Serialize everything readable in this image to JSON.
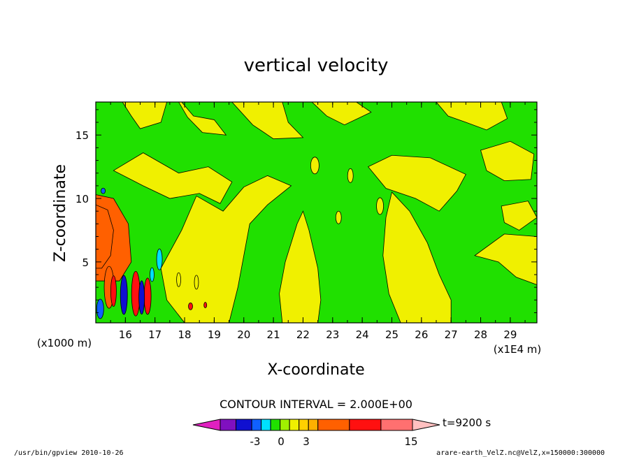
{
  "chart_data": {
    "type": "contour",
    "title": "vertical velocity",
    "xlabel": "X-coordinate",
    "ylabel": "Z-coordinate",
    "x_unit": "(x1E4 m)",
    "y_unit": "(x1000 m)",
    "x_ticks": [
      16,
      17,
      18,
      19,
      20,
      21,
      22,
      23,
      24,
      25,
      26,
      27,
      28,
      29
    ],
    "y_ticks": [
      5,
      10,
      15
    ],
    "xlim": [
      15.0,
      29.9
    ],
    "ylim": [
      0.2,
      17.6
    ],
    "contour_interval_label": "CONTOUR INTERVAL = 2.000E+00",
    "time_label": "t=9200 s",
    "colorbar": {
      "colors": [
        "#e020c0",
        "#8010c0",
        "#1010d0",
        "#1060ff",
        "#00e0ff",
        "#20e000",
        "#a0f000",
        "#f0f000",
        "#ffd000",
        "#ffb000",
        "#ff6000",
        "#ff1010",
        "#ff7070",
        "#ffc0c0"
      ],
      "widths": [
        2,
        1,
        1,
        0.6,
        0.6,
        0.6,
        0.6,
        0.6,
        0.6,
        0.6,
        2,
        2,
        2,
        2
      ],
      "tick_labels": [
        "-3",
        "0",
        "3",
        "15"
      ],
      "tick_values": [
        -3,
        0,
        3,
        15
      ]
    },
    "fill_colors": {
      "neutral": "#20e000",
      "weak_positive": "#f0f000",
      "moderate_positive": "#ff6000",
      "strong_positive": "#ff1010",
      "weak_negative": "#00e0ff",
      "negative": "#1060ff",
      "strong_negative": "#1010d0"
    },
    "grid": false
  },
  "footer": {
    "left": "/usr/bin/gpview   2010-10-26",
    "right": "arare-earth_VelZ.nc@VelZ,x=150000:300000"
  }
}
